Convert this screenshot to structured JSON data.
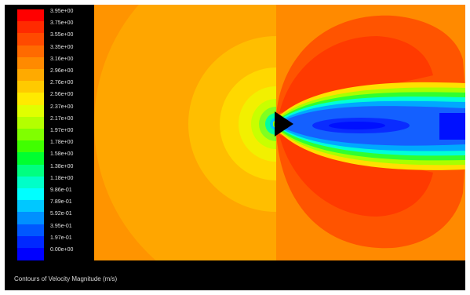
{
  "window": {
    "caption": "Contours of Velocity Magnitude (m/s)"
  },
  "legend": {
    "entries": [
      {
        "label": "3.95e+00",
        "color": "#ff0000"
      },
      {
        "label": "3.75e+00",
        "color": "#ff2a00"
      },
      {
        "label": "3.55e+00",
        "color": "#ff4a00"
      },
      {
        "label": "3.35e+00",
        "color": "#ff6a00"
      },
      {
        "label": "3.16e+00",
        "color": "#ff8a00"
      },
      {
        "label": "2.96e+00",
        "color": "#ffaa00"
      },
      {
        "label": "2.76e+00",
        "color": "#ffca00"
      },
      {
        "label": "2.56e+00",
        "color": "#ffea00"
      },
      {
        "label": "2.37e+00",
        "color": "#e0ff00"
      },
      {
        "label": "2.17e+00",
        "color": "#b4ff00"
      },
      {
        "label": "1.97e+00",
        "color": "#80ff00"
      },
      {
        "label": "1.78e+00",
        "color": "#40ff00"
      },
      {
        "label": "1.58e+00",
        "color": "#00ff30"
      },
      {
        "label": "1.38e+00",
        "color": "#00ff80"
      },
      {
        "label": "1.18e+00",
        "color": "#00ffc8"
      },
      {
        "label": "9.86e-01",
        "color": "#00ffff"
      },
      {
        "label": "7.89e-01",
        "color": "#00c8ff"
      },
      {
        "label": "5.92e-01",
        "color": "#0090ff"
      },
      {
        "label": "3.95e-01",
        "color": "#0058ff"
      },
      {
        "label": "1.97e-01",
        "color": "#0028ff"
      },
      {
        "label": "0.00e+00",
        "color": "#0000ff"
      }
    ]
  },
  "plot": {
    "background_color": "#ff8a00",
    "body_color": "#000000"
  }
}
